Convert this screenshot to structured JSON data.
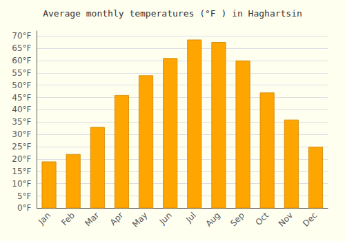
{
  "chart_data": {
    "type": "bar",
    "title": "Average monthly temperatures (°F ) in Haghartsin",
    "categories": [
      "Jan",
      "Feb",
      "Mar",
      "Apr",
      "May",
      "Jun",
      "Jul",
      "Aug",
      "Sep",
      "Oct",
      "Nov",
      "Dec"
    ],
    "values": [
      19,
      22,
      33,
      46,
      54,
      61,
      68.5,
      67.5,
      60,
      47,
      36,
      25
    ],
    "color": "#FFA500",
    "ylim": [
      0,
      72
    ],
    "yticks": [
      {
        "value": 0,
        "label": "0°F"
      },
      {
        "value": 5,
        "label": "5°F"
      },
      {
        "value": 10,
        "label": "10°F"
      },
      {
        "value": 15,
        "label": "15°F"
      },
      {
        "value": 20,
        "label": "20°F"
      },
      {
        "value": 25,
        "label": "25°F"
      },
      {
        "value": 30,
        "label": "30°F"
      },
      {
        "value": 35,
        "label": "35°F"
      },
      {
        "value": 40,
        "label": "40°F"
      },
      {
        "value": 45,
        "label": "45°F"
      },
      {
        "value": 50,
        "label": "50°F"
      },
      {
        "value": 55,
        "label": "55°F"
      },
      {
        "value": 60,
        "label": "60°F"
      },
      {
        "value": 65,
        "label": "65°F"
      },
      {
        "value": 70,
        "label": "70°F"
      }
    ],
    "grid": true
  }
}
